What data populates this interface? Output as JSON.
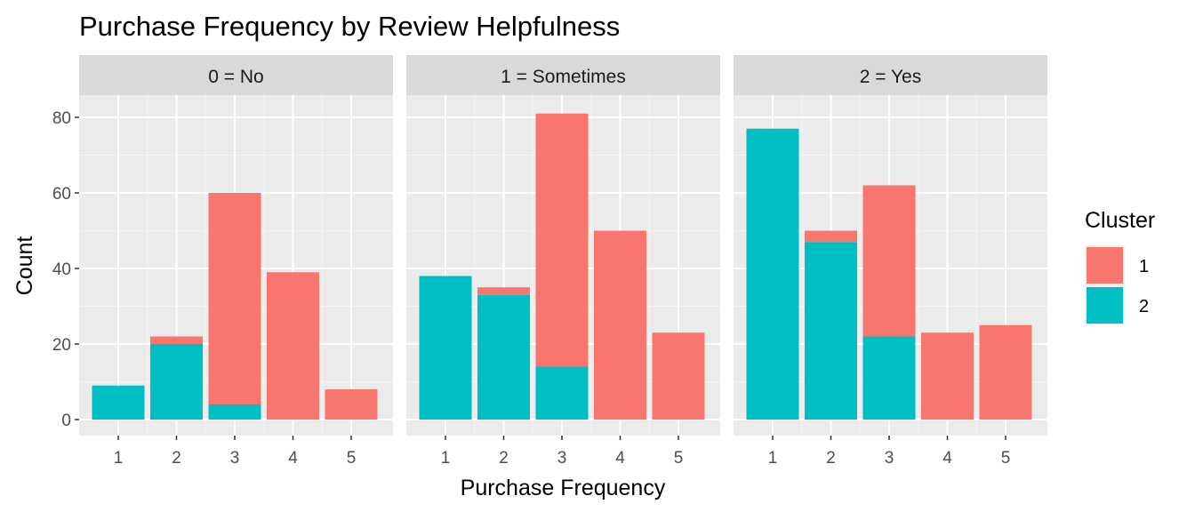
{
  "chart_data": {
    "type": "bar",
    "stacked": true,
    "title": "Purchase Frequency by Review Helpfulness",
    "xlabel": "Purchase Frequency",
    "ylabel": "Count",
    "x_ticks": [
      "1",
      "2",
      "3",
      "4",
      "5"
    ],
    "y_ticks": [
      0,
      20,
      40,
      60,
      80
    ],
    "ylim": [
      0,
      90
    ],
    "legend": {
      "title": "Cluster",
      "position": "right",
      "items": [
        {
          "label": "1",
          "color": "#F8766D"
        },
        {
          "label": "2",
          "color": "#00BFC4"
        }
      ]
    },
    "facets": [
      {
        "label": "0 = No",
        "series": [
          {
            "name": "1",
            "values": [
              0,
              2,
              56,
              39,
              8
            ]
          },
          {
            "name": "2",
            "values": [
              9,
              20,
              4,
              0,
              0
            ]
          }
        ]
      },
      {
        "label": "1 = Sometimes",
        "series": [
          {
            "name": "1",
            "values": [
              0,
              2,
              67,
              50,
              23
            ]
          },
          {
            "name": "2",
            "values": [
              38,
              33,
              14,
              0,
              0
            ]
          }
        ]
      },
      {
        "label": "2 = Yes",
        "series": [
          {
            "name": "1",
            "values": [
              0,
              3,
              40,
              23,
              25
            ]
          },
          {
            "name": "2",
            "values": [
              77,
              47,
              22,
              0,
              0
            ]
          }
        ]
      }
    ],
    "grid": true
  }
}
